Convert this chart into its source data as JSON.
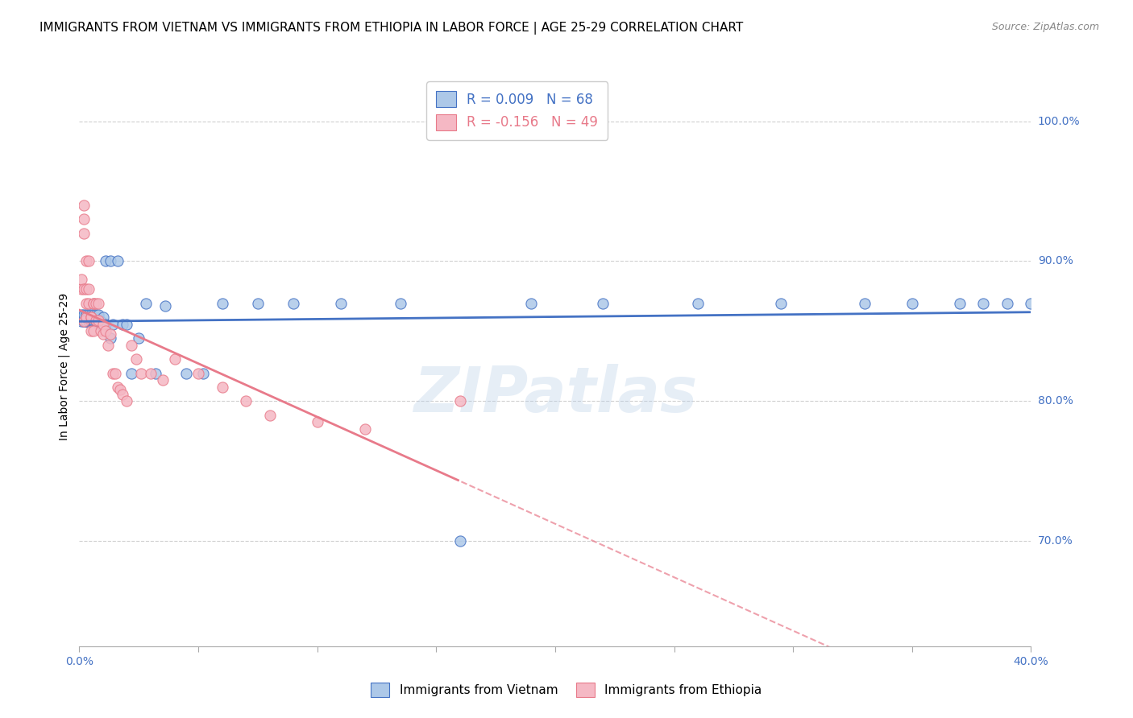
{
  "title": "IMMIGRANTS FROM VIETNAM VS IMMIGRANTS FROM ETHIOPIA IN LABOR FORCE | AGE 25-29 CORRELATION CHART",
  "source": "Source: ZipAtlas.com",
  "ylabel": "In Labor Force | Age 25-29",
  "right_yticks": [
    "100.0%",
    "90.0%",
    "80.0%",
    "70.0%"
  ],
  "right_ytick_vals": [
    1.0,
    0.9,
    0.8,
    0.7
  ],
  "vietnam_R": 0.009,
  "vietnam_N": 68,
  "ethiopia_R": -0.156,
  "ethiopia_N": 49,
  "vietnam_color": "#adc8e8",
  "ethiopia_color": "#f5b8c4",
  "vietnam_line_color": "#4472c4",
  "ethiopia_line_color": "#e87a8a",
  "watermark": "ZIPatlas",
  "vietnam_x": [
    0.001,
    0.001,
    0.001,
    0.002,
    0.002,
    0.002,
    0.002,
    0.002,
    0.003,
    0.003,
    0.003,
    0.003,
    0.003,
    0.004,
    0.004,
    0.004,
    0.004,
    0.005,
    0.005,
    0.005,
    0.005,
    0.005,
    0.005,
    0.006,
    0.006,
    0.006,
    0.006,
    0.007,
    0.007,
    0.007,
    0.008,
    0.008,
    0.008,
    0.009,
    0.009,
    0.01,
    0.01,
    0.011,
    0.011,
    0.013,
    0.013,
    0.014,
    0.016,
    0.018,
    0.02,
    0.022,
    0.025,
    0.028,
    0.032,
    0.036,
    0.045,
    0.052,
    0.06,
    0.075,
    0.09,
    0.11,
    0.135,
    0.16,
    0.19,
    0.22,
    0.26,
    0.295,
    0.33,
    0.35,
    0.37,
    0.38,
    0.39,
    0.4
  ],
  "vietnam_y": [
    0.857,
    0.86,
    0.862,
    0.857,
    0.857,
    0.858,
    0.86,
    0.862,
    0.857,
    0.857,
    0.857,
    0.86,
    0.862,
    0.857,
    0.857,
    0.86,
    0.862,
    0.857,
    0.857,
    0.857,
    0.858,
    0.86,
    0.862,
    0.857,
    0.858,
    0.86,
    0.862,
    0.857,
    0.858,
    0.862,
    0.855,
    0.857,
    0.862,
    0.855,
    0.857,
    0.855,
    0.86,
    0.855,
    0.9,
    0.845,
    0.9,
    0.855,
    0.9,
    0.855,
    0.855,
    0.82,
    0.845,
    0.87,
    0.82,
    0.868,
    0.82,
    0.82,
    0.87,
    0.87,
    0.87,
    0.87,
    0.87,
    0.7,
    0.87,
    0.87,
    0.87,
    0.87,
    0.87,
    0.87,
    0.87,
    0.87,
    0.87,
    0.87
  ],
  "ethiopia_x": [
    0.001,
    0.001,
    0.002,
    0.002,
    0.002,
    0.002,
    0.002,
    0.003,
    0.003,
    0.003,
    0.003,
    0.004,
    0.004,
    0.004,
    0.005,
    0.005,
    0.005,
    0.006,
    0.006,
    0.006,
    0.007,
    0.007,
    0.008,
    0.008,
    0.009,
    0.01,
    0.01,
    0.011,
    0.012,
    0.013,
    0.014,
    0.015,
    0.016,
    0.017,
    0.018,
    0.02,
    0.022,
    0.024,
    0.026,
    0.03,
    0.035,
    0.04,
    0.05,
    0.06,
    0.07,
    0.08,
    0.1,
    0.12,
    0.16
  ],
  "ethiopia_y": [
    0.88,
    0.887,
    0.857,
    0.94,
    0.93,
    0.92,
    0.88,
    0.9,
    0.88,
    0.87,
    0.86,
    0.9,
    0.88,
    0.87,
    0.86,
    0.86,
    0.85,
    0.87,
    0.85,
    0.87,
    0.87,
    0.858,
    0.87,
    0.858,
    0.85,
    0.855,
    0.848,
    0.85,
    0.84,
    0.848,
    0.82,
    0.82,
    0.81,
    0.808,
    0.805,
    0.8,
    0.84,
    0.83,
    0.82,
    0.82,
    0.815,
    0.83,
    0.82,
    0.81,
    0.8,
    0.79,
    0.785,
    0.78,
    0.8
  ],
  "xlim": [
    0.0,
    0.4
  ],
  "ylim": [
    0.625,
    1.025
  ],
  "title_fontsize": 11,
  "axis_label_fontsize": 10,
  "tick_fontsize": 10,
  "xtick_positions": [
    0.0,
    0.05,
    0.1,
    0.15,
    0.2,
    0.25,
    0.3,
    0.35,
    0.4
  ]
}
